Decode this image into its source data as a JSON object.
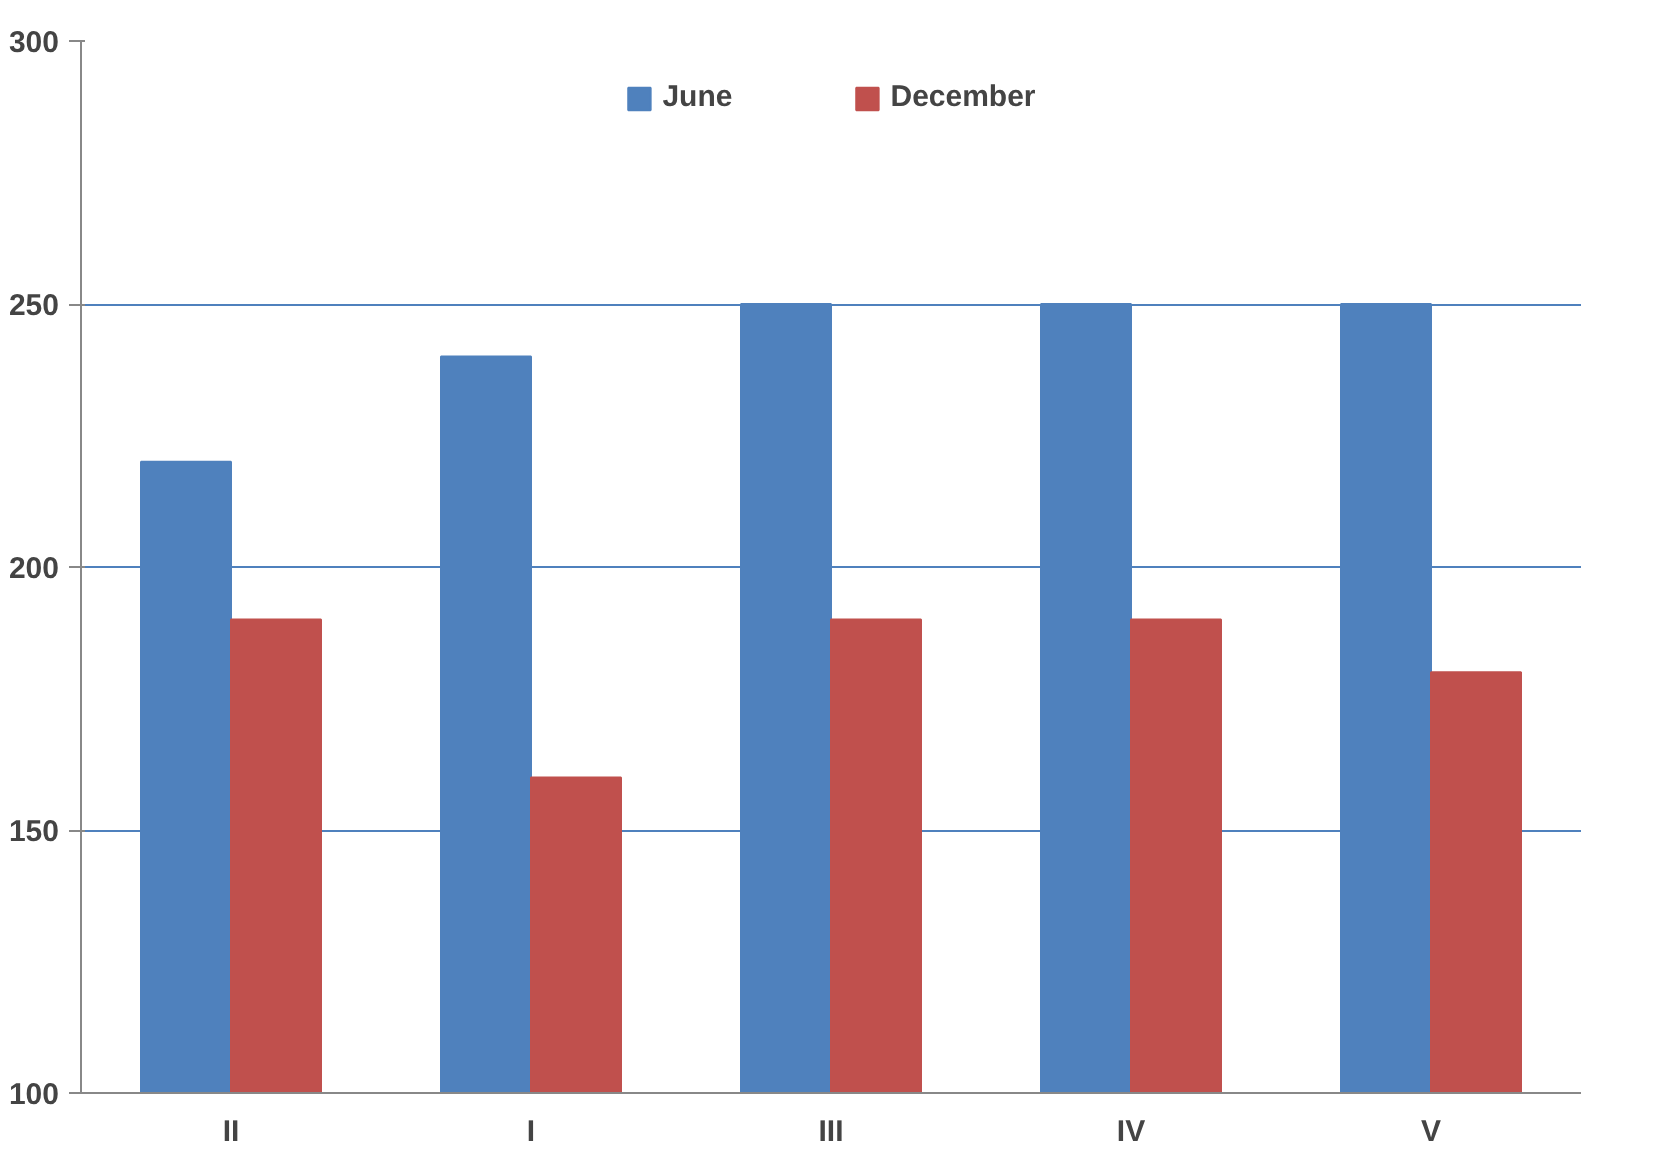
{
  "chart_data": {
    "type": "bar",
    "categories": [
      "II",
      "I",
      "III",
      "IV",
      "V"
    ],
    "series": [
      {
        "name": "June",
        "color": "#4f81bd",
        "values": [
          220,
          240,
          250,
          250,
          250
        ]
      },
      {
        "name": "December",
        "color": "#c0504d",
        "values": [
          190,
          160,
          190,
          190,
          180
        ]
      }
    ],
    "ylim": [
      100,
      300
    ],
    "yticks": [
      100,
      150,
      200,
      250,
      300
    ],
    "grid": "y",
    "legend": "top"
  }
}
